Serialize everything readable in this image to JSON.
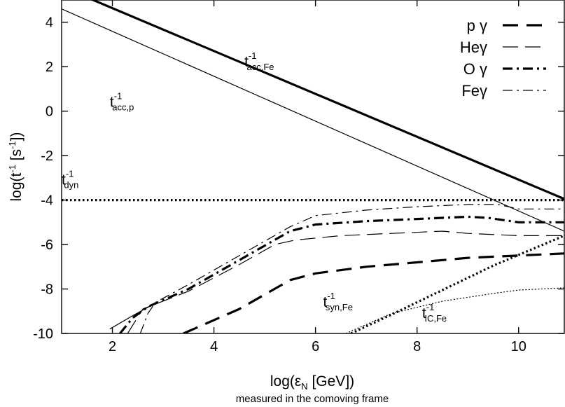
{
  "chart_data": {
    "type": "line",
    "xlabel": "log(εN [GeV])",
    "ylabel": "log(t-1 [s-1])",
    "caption": "measured in the comoving frame",
    "xlim": [
      1,
      10.9
    ],
    "ylim": [
      -10,
      5
    ],
    "x_ticks": [
      2,
      4,
      6,
      8,
      10
    ],
    "y_ticks": [
      4,
      2,
      0,
      -2,
      -4,
      -6,
      -8,
      -10
    ],
    "legend_position": "top-right",
    "legend": [
      {
        "label": "p γ",
        "style": "long-dash-thick"
      },
      {
        "label": "Heγ",
        "style": "long-dash-thin"
      },
      {
        "label": "O γ",
        "style": "dash-dot-thick"
      },
      {
        "label": "Feγ",
        "style": "dash-dot-thin"
      }
    ],
    "series": [
      {
        "name": "p γ",
        "style": "long-dash-thick",
        "x": [
          3.4,
          4.5,
          5.5,
          6.0,
          7.0,
          8.0,
          9.0,
          10.9
        ],
        "y": [
          -10.0,
          -8.9,
          -7.6,
          -7.3,
          -7.0,
          -6.8,
          -6.6,
          -6.4
        ]
      },
      {
        "name": "Heγ",
        "style": "long-dash-thin",
        "x": [
          2.3,
          2.6,
          3.5,
          4.5,
          5.2,
          5.6,
          6.5,
          7.5,
          8.5,
          9.0,
          10.0,
          10.9
        ],
        "y": [
          -10.0,
          -8.9,
          -8.1,
          -6.9,
          -6.0,
          -5.8,
          -5.6,
          -5.5,
          -5.4,
          -5.5,
          -5.6,
          -5.6
        ]
      },
      {
        "name": "O γ",
        "style": "dash-dot-thick",
        "x": [
          2.15,
          2.4,
          2.7,
          3.5,
          4.5,
          5.5,
          6.0,
          7.0,
          8.0,
          9.0,
          9.4,
          10.0,
          10.9
        ],
        "y": [
          -10.0,
          -9.3,
          -8.8,
          -8.0,
          -6.7,
          -5.4,
          -5.1,
          -4.95,
          -4.85,
          -4.75,
          -4.8,
          -5.0,
          -5.0
        ]
      },
      {
        "name": "Feγ",
        "style": "dash-dot-thin",
        "x": [
          2.55,
          2.7,
          2.85,
          3.5,
          4.5,
          5.5,
          6.0,
          7.0,
          8.0,
          9.0,
          9.6,
          10.0,
          10.9
        ],
        "y": [
          -10.0,
          -9.1,
          -8.6,
          -7.8,
          -6.5,
          -5.2,
          -4.7,
          -4.45,
          -4.3,
          -4.2,
          -4.2,
          -4.4,
          -4.4
        ]
      },
      {
        "name": "gamma-tail",
        "style": "thin-solid",
        "x": [
          1.95,
          2.4,
          2.8
        ],
        "y": [
          -9.8,
          -9.2,
          -8.7
        ]
      },
      {
        "name": "t_acc,Fe",
        "style": "thick-solid",
        "x": [
          1.0,
          10.9
        ],
        "y": [
          5.6,
          -3.95
        ]
      },
      {
        "name": "t_acc,p",
        "style": "thin-solid",
        "x": [
          1.0,
          10.9
        ],
        "y": [
          4.6,
          -5.4
        ]
      },
      {
        "name": "t_dyn",
        "style": "dotted-thick",
        "x": [
          1.0,
          10.9
        ],
        "y": [
          -4.0,
          -4.0
        ]
      },
      {
        "name": "t_syn,Fe",
        "style": "dotted-thick",
        "x": [
          6.7,
          7.5,
          8.5,
          9.5,
          10.9
        ],
        "y": [
          -10.0,
          -9.15,
          -8.05,
          -6.95,
          -5.6
        ]
      },
      {
        "name": "t_IC,Fe",
        "style": "dotted-thin",
        "x": [
          6.6,
          7.5,
          8.5,
          9.5,
          10.0,
          10.9
        ],
        "y": [
          -10.0,
          -9.1,
          -8.55,
          -8.2,
          -8.05,
          -7.95
        ]
      }
    ],
    "curve_labels": [
      {
        "base": "t",
        "sup": "-1",
        "sub": "acc,Fe",
        "x": 4.6,
        "y": 2.0
      },
      {
        "base": "t",
        "sup": "-1",
        "sub": "acc,p",
        "x": 1.95,
        "y": 0.2
      },
      {
        "base": "t",
        "sup": "-1",
        "sub": "dyn",
        "x": 1.0,
        "y": -3.3
      },
      {
        "base": "t",
        "sup": "-1",
        "sub": "syn,Fe",
        "x": 6.15,
        "y": -8.8
      },
      {
        "base": "t",
        "sup": "-1",
        "sub": "IC,Fe",
        "x": 8.1,
        "y": -9.3
      }
    ]
  }
}
